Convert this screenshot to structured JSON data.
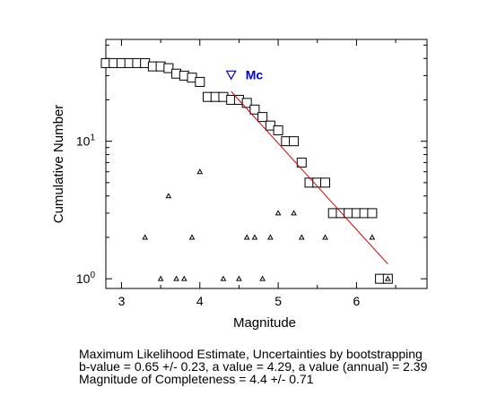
{
  "chart_data": {
    "type": "scatter",
    "xlabel": "Magnitude",
    "ylabel": "Cumulative Number",
    "xlim": [
      2.8,
      6.9
    ],
    "ylim": [
      0.85,
      55
    ],
    "yscale": "log",
    "x_ticks": [
      3,
      4,
      5,
      6
    ],
    "y_ticks": [
      {
        "value": 1,
        "base": "10",
        "exp": "0"
      },
      {
        "value": 10,
        "base": "10",
        "exp": "1"
      }
    ],
    "grid": false,
    "series": [
      {
        "marker": "open-square",
        "color": "#000000",
        "x": [
          2.8,
          2.9,
          3.0,
          3.1,
          3.2,
          3.3,
          3.4,
          3.5,
          3.6,
          3.7,
          3.8,
          3.9,
          4.0,
          4.1,
          4.2,
          4.3,
          4.4,
          4.5,
          4.6,
          4.7,
          4.8,
          4.9,
          5.0,
          5.1,
          5.2,
          5.3,
          5.4,
          5.5,
          5.6,
          5.7,
          5.8,
          5.9,
          6.0,
          6.1,
          6.2,
          6.3,
          6.4
        ],
        "y": [
          37,
          37,
          37,
          37,
          37,
          37,
          35,
          35,
          34,
          31,
          30,
          29,
          27,
          21,
          21,
          21,
          20,
          20,
          19,
          17,
          15,
          13,
          12,
          10,
          10,
          7,
          5,
          5,
          5,
          3,
          3,
          3,
          3,
          3,
          3,
          1,
          1
        ]
      },
      {
        "marker": "small-triangle",
        "color": "#000000",
        "x": [
          3.3,
          3.5,
          3.6,
          3.7,
          3.8,
          3.9,
          4.0,
          4.3,
          4.5,
          4.6,
          4.7,
          4.8,
          4.9,
          5.0,
          5.2,
          5.3,
          5.6,
          6.2,
          6.4
        ],
        "y": [
          2,
          1,
          4,
          1,
          1,
          2,
          6,
          1,
          1,
          2,
          2,
          1,
          2,
          3,
          3,
          2,
          2,
          2,
          1
        ]
      },
      {
        "marker": "line",
        "color": "#cc0000",
        "x": [
          4.4,
          6.4
        ],
        "y": [
          23.0,
          1.28
        ]
      },
      {
        "name": "Mc",
        "marker": "down-triangle",
        "color": "#0000cc",
        "x": [
          4.4
        ],
        "y": [
          30.5
        ]
      }
    ]
  },
  "caption": {
    "line1": "Maximum Likelihood Estimate, Uncertainties by bootstrapping",
    "line2": "b-value = 0.65 +/- 0.23,  a value = 4.29,  a value (annual) = 2.39",
    "line3": "Magnitude of Completeness = 4.4 +/- 0.71"
  }
}
